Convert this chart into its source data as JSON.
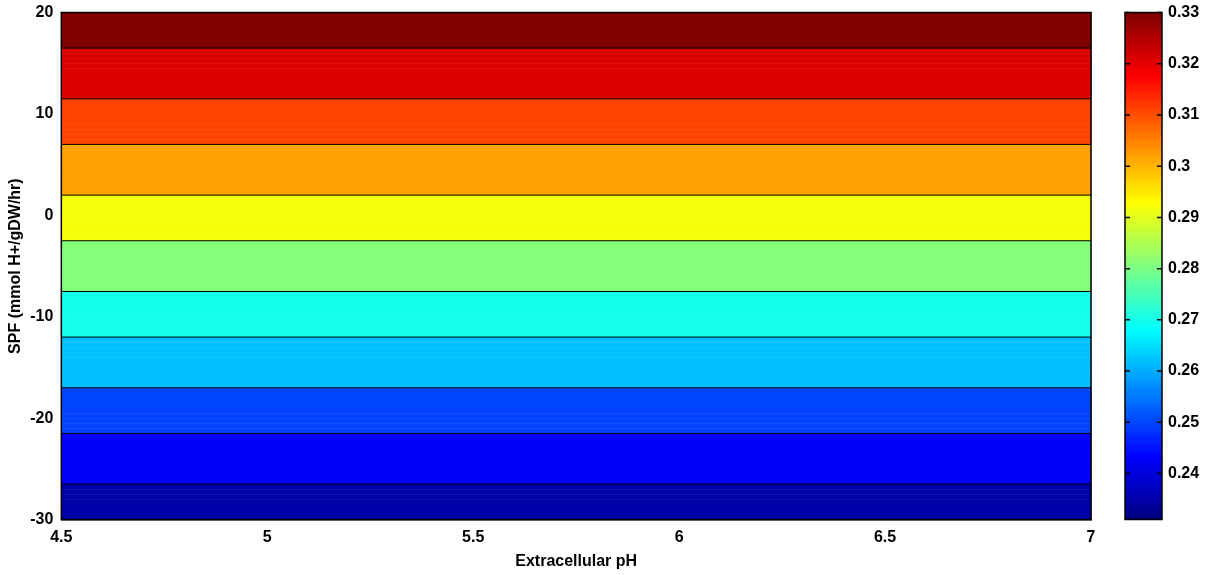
{
  "chart_data": {
    "type": "heatmap",
    "xlabel": "Extracellular pH",
    "ylabel": "SPF (mmol H+/gDW/hr)",
    "xlim": [
      4.5,
      7
    ],
    "xticks": [
      4.5,
      5,
      5.5,
      6,
      6.5,
      7
    ],
    "ylim": [
      -30,
      20
    ],
    "yticks": [
      -30,
      -20,
      -10,
      0,
      10,
      20
    ],
    "clim": [
      0.231,
      0.33
    ],
    "cticks": [
      0.24,
      0.25,
      0.26,
      0.27,
      0.28,
      0.29,
      0.3,
      0.31,
      0.32,
      0.33
    ],
    "cells": [
      [
        0.33
      ],
      [
        0.33
      ],
      [
        0.33
      ],
      [
        0.33
      ],
      [
        0.33
      ],
      [
        0.33
      ],
      [
        0.33
      ],
      [
        0.321
      ],
      [
        0.321
      ],
      [
        0.321
      ],
      [
        0.321
      ],
      [
        0.321
      ],
      [
        0.321
      ],
      [
        0.321
      ],
      [
        0.321
      ],
      [
        0.321
      ],
      [
        0.321
      ],
      [
        0.311
      ],
      [
        0.311
      ],
      [
        0.311
      ],
      [
        0.311
      ],
      [
        0.311
      ],
      [
        0.311
      ],
      [
        0.311
      ],
      [
        0.311
      ],
      [
        0.311
      ],
      [
        0.302
      ],
      [
        0.302
      ],
      [
        0.302
      ],
      [
        0.302
      ],
      [
        0.302
      ],
      [
        0.302
      ],
      [
        0.302
      ],
      [
        0.302
      ],
      [
        0.302
      ],
      [
        0.302
      ],
      [
        0.292
      ],
      [
        0.292
      ],
      [
        0.292
      ],
      [
        0.292
      ],
      [
        0.292
      ],
      [
        0.292
      ],
      [
        0.292
      ],
      [
        0.292
      ],
      [
        0.292
      ],
      [
        0.281
      ],
      [
        0.281
      ],
      [
        0.281
      ],
      [
        0.281
      ],
      [
        0.281
      ],
      [
        0.281
      ],
      [
        0.281
      ],
      [
        0.281
      ],
      [
        0.281
      ],
      [
        0.281
      ],
      [
        0.27
      ],
      [
        0.27
      ],
      [
        0.27
      ],
      [
        0.27
      ],
      [
        0.27
      ],
      [
        0.27
      ],
      [
        0.27
      ],
      [
        0.27
      ],
      [
        0.27
      ],
      [
        0.262
      ],
      [
        0.262
      ],
      [
        0.262
      ],
      [
        0.262
      ],
      [
        0.262
      ],
      [
        0.262
      ],
      [
        0.262
      ],
      [
        0.262
      ],
      [
        0.262
      ],
      [
        0.262
      ],
      [
        0.25
      ],
      [
        0.25
      ],
      [
        0.25
      ],
      [
        0.25
      ],
      [
        0.25
      ],
      [
        0.25
      ],
      [
        0.25
      ],
      [
        0.25
      ],
      [
        0.25
      ],
      [
        0.243
      ],
      [
        0.243
      ],
      [
        0.243
      ],
      [
        0.243
      ],
      [
        0.243
      ],
      [
        0.243
      ],
      [
        0.243
      ],
      [
        0.243
      ],
      [
        0.243
      ],
      [
        0.243
      ],
      [
        0.235
      ],
      [
        0.235
      ],
      [
        0.235
      ],
      [
        0.235
      ],
      [
        0.235
      ],
      [
        0.235
      ],
      [
        0.235
      ]
    ]
  }
}
